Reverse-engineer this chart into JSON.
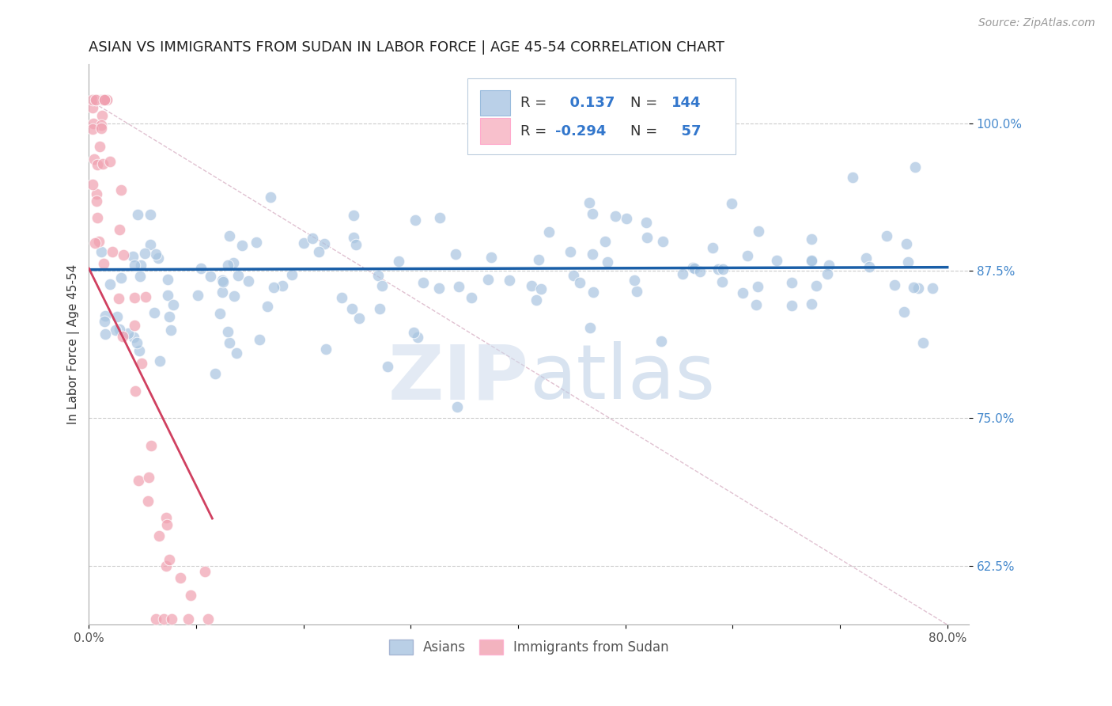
{
  "title": "ASIAN VS IMMIGRANTS FROM SUDAN IN LABOR FORCE | AGE 45-54 CORRELATION CHART",
  "source": "Source: ZipAtlas.com",
  "ylabel": "In Labor Force | Age 45-54",
  "xlim": [
    0.0,
    0.82
  ],
  "ylim": [
    0.575,
    1.05
  ],
  "ytick_positions": [
    0.625,
    0.75,
    0.875,
    1.0
  ],
  "ytick_labels": [
    "62.5%",
    "75.0%",
    "87.5%",
    "100.0%"
  ],
  "xtick_positions": [
    0.0,
    0.1,
    0.2,
    0.3,
    0.4,
    0.5,
    0.6,
    0.7,
    0.8
  ],
  "xticklabels_show": [
    "0.0%",
    "80.0%"
  ],
  "grid_color": "#cccccc",
  "background_color": "#ffffff",
  "blue_color": "#a8c4e0",
  "pink_color": "#f0a0b0",
  "blue_line_color": "#1a5fa8",
  "pink_line_color": "#d04060",
  "ref_line_color": "#ddbbcc",
  "legend_R_blue": "0.137",
  "legend_N_blue": "144",
  "legend_R_pink": "-0.294",
  "legend_N_pink": "57",
  "legend_label_blue": "Asians",
  "legend_label_pink": "Immigrants from Sudan",
  "watermark_zip": "ZIP",
  "watermark_atlas": "atlas",
  "title_fontsize": 13,
  "axis_label_fontsize": 11,
  "tick_fontsize": 11,
  "source_fontsize": 10
}
